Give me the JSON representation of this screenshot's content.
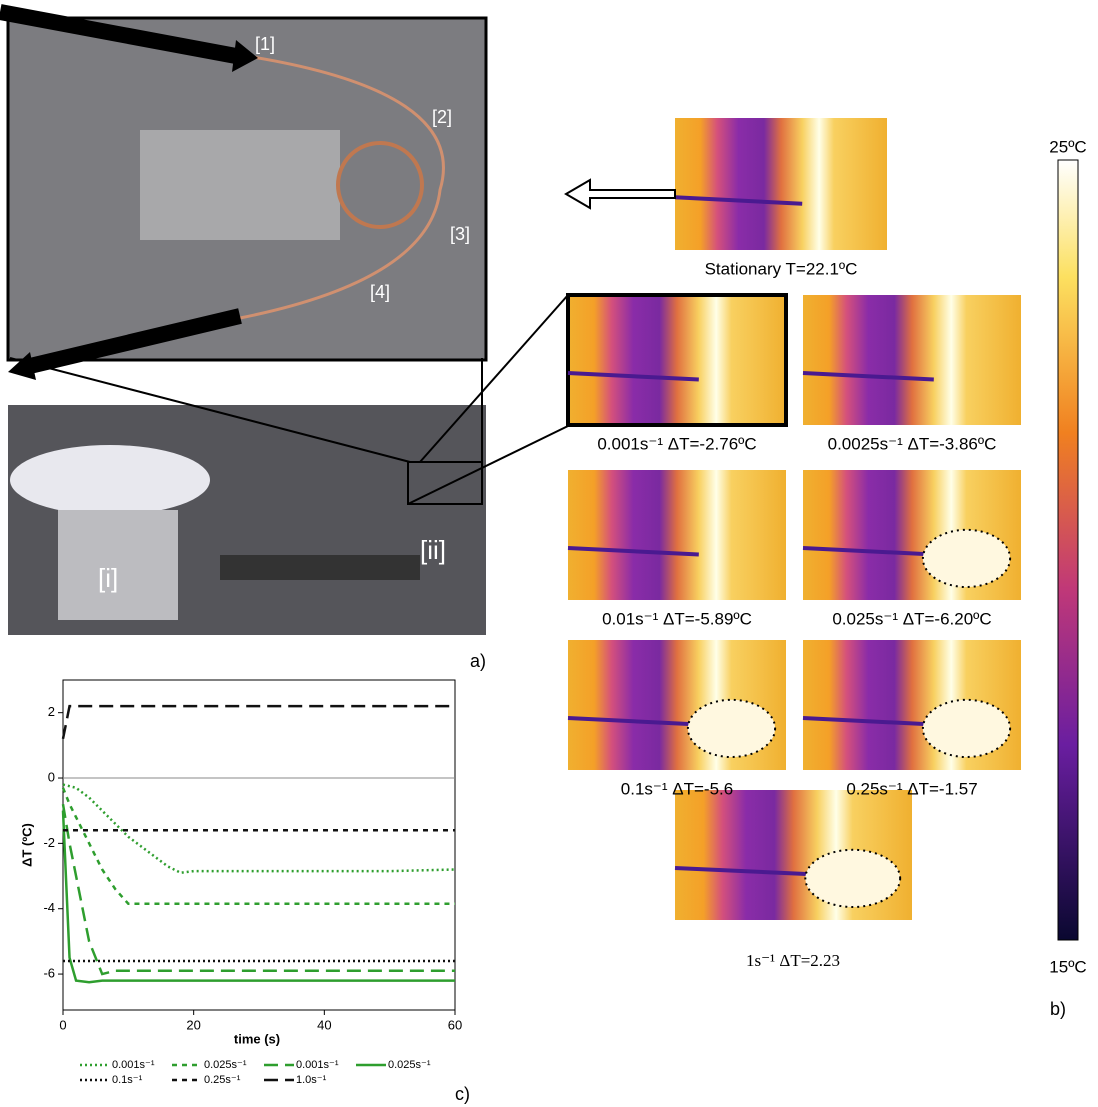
{
  "photo_labels": [
    "[1]",
    "[2]",
    "[3]",
    "[4]",
    "[i]",
    "[ii]"
  ],
  "panel_labels": [
    "a)",
    "b)",
    "c)"
  ],
  "thermal": {
    "stationary": "Stationary T=22.1ºC",
    "captions": [
      "0.001s⁻¹ ΔT=-2.76ºC",
      "0.0025s⁻¹ ΔT=-3.86ºC",
      "0.01s⁻¹ ΔT=-5.89ºC",
      "0.025s⁻¹ ΔT=-6.20ºC",
      "0.1s⁻¹ ΔT=-5.6",
      "0.25s⁻¹ ΔT=-1.57"
    ],
    "last": "1s⁻¹ ΔT=2.23"
  },
  "colorbar": {
    "max": "25ºC",
    "min": "15ºC"
  },
  "chart_data": {
    "type": "line",
    "x_label": "time (s)",
    "y_label": "ΔT (ºC)",
    "x": [
      0,
      1,
      2,
      4,
      6,
      8,
      10,
      12,
      14,
      16,
      18,
      20,
      30,
      40,
      50,
      60
    ],
    "xlim": [
      0,
      60
    ],
    "xticks": [
      0,
      20,
      40,
      60
    ],
    "ylim": [
      -7.1,
      3
    ],
    "yticks": [
      -6,
      -4,
      -2,
      0,
      2
    ],
    "series": [
      {
        "name": "0.001s⁻¹",
        "color": "#2e9e2e",
        "style": "dotted",
        "values": [
          -0.2,
          -0.25,
          -0.3,
          -0.6,
          -1.0,
          -1.4,
          -1.8,
          -2.1,
          -2.4,
          -2.7,
          -2.9,
          -2.85,
          -2.85,
          -2.85,
          -2.85,
          -2.8
        ]
      },
      {
        "name": "0.025s⁻¹",
        "color": "#2e9e2e",
        "style": "dashed",
        "values": [
          -0.3,
          -0.8,
          -1.2,
          -2.0,
          -2.8,
          -3.4,
          -3.85,
          -3.85,
          -3.85,
          -3.85,
          -3.85,
          -3.85,
          -3.85,
          -3.85,
          -3.85,
          -3.85
        ]
      },
      {
        "name": "0.001s⁻¹",
        "color": "#2e9e2e",
        "style": "longdash",
        "values": [
          -0.8,
          -2.0,
          -3.0,
          -5.0,
          -6.0,
          -5.9,
          -5.9,
          -5.9,
          -5.9,
          -5.9,
          -5.9,
          -5.9,
          -5.9,
          -5.9,
          -5.9,
          -5.9
        ]
      },
      {
        "name": "0.025s⁻¹",
        "color": "#2e9e2e",
        "style": "solid",
        "values": [
          -1.0,
          -5.5,
          -6.2,
          -6.25,
          -6.2,
          -6.2,
          -6.2,
          -6.2,
          -6.2,
          -6.2,
          -6.2,
          -6.2,
          -6.2,
          -6.2,
          -6.2,
          -6.2
        ]
      },
      {
        "name": "0.1s⁻¹",
        "color": "#111111",
        "style": "dotted",
        "values": [
          -5.6,
          -5.6,
          -5.6,
          -5.6,
          -5.6,
          -5.6,
          -5.6,
          -5.6,
          -5.6,
          -5.6,
          -5.6,
          -5.6,
          -5.6,
          -5.6,
          -5.6,
          -5.6
        ]
      },
      {
        "name": "0.25s⁻¹",
        "color": "#111111",
        "style": "dashed",
        "values": [
          -1.6,
          -1.6,
          -1.6,
          -1.6,
          -1.6,
          -1.6,
          -1.6,
          -1.6,
          -1.6,
          -1.6,
          -1.6,
          -1.6,
          -1.6,
          -1.6,
          -1.6,
          -1.6
        ]
      },
      {
        "name": "1.0s⁻¹",
        "color": "#111111",
        "style": "longdash",
        "values": [
          1.2,
          2.2,
          2.2,
          2.2,
          2.2,
          2.2,
          2.2,
          2.2,
          2.2,
          2.2,
          2.2,
          2.2,
          2.2,
          2.2,
          2.2,
          2.2
        ]
      }
    ]
  }
}
